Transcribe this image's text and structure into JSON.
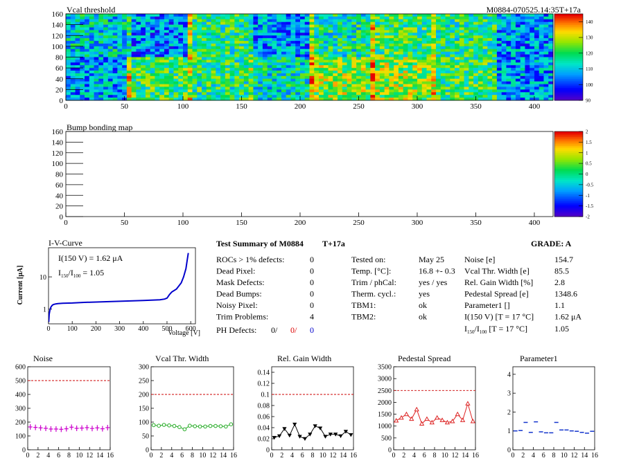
{
  "header": {
    "title_left": "Vcal threshold",
    "title_right": "M0884-070525.14:35T+17a"
  },
  "chart_data": [
    {
      "id": "vcal",
      "type": "heatmap",
      "title": "Vcal threshold",
      "xlim": [
        0,
        416
      ],
      "ylim": [
        0,
        160
      ],
      "xticks": [
        0,
        50,
        100,
        150,
        200,
        250,
        300,
        350,
        400
      ],
      "yticks": [
        0,
        20,
        40,
        60,
        80,
        100,
        120,
        140,
        160
      ],
      "palette_ticks": [
        90,
        100,
        110,
        120,
        130,
        140
      ],
      "zlim": [
        90,
        145
      ],
      "roc_grid": {
        "cols": 8,
        "rows": 2,
        "col_width": 52,
        "row_height": 80
      },
      "roc_levels_top": [
        112,
        105,
        118,
        106,
        116,
        120,
        118,
        106
      ],
      "roc_levels_bottom": [
        108,
        120,
        118,
        114,
        126,
        126,
        120,
        106
      ]
    },
    {
      "id": "bump",
      "type": "heatmap",
      "title": "Bump bonding map",
      "xlim": [
        0,
        416
      ],
      "ylim": [
        0,
        160
      ],
      "xticks": [
        0,
        50,
        100,
        150,
        200,
        250,
        300,
        350,
        400
      ],
      "yticks": [
        0,
        20,
        40,
        60,
        80,
        100,
        120,
        140,
        160
      ],
      "palette_ticks": [
        "2",
        "1.5",
        "1",
        "0.5",
        "0",
        "-0.5",
        "-1",
        "-1.5",
        "-2"
      ],
      "zlim": [
        -2,
        2
      ]
    },
    {
      "id": "iv",
      "type": "line",
      "title": "I-V-Curve",
      "xlabel": "Voltage [V]",
      "ylabel": "Current [μA]",
      "xlim": [
        0,
        620
      ],
      "ylim": [
        0.35,
        80
      ],
      "log_y": true,
      "xticks": [
        0,
        100,
        200,
        300,
        400,
        500,
        600
      ],
      "yticks": [
        "1",
        "10"
      ],
      "annotation_1": "I(150 V) = 1.62 μA",
      "annotation_2_a": "I",
      "annotation_2_sub1": "150",
      "annotation_2_b": "/I",
      "annotation_2_sub2": "100",
      "annotation_2_c": " =  1.05",
      "x": [
        1,
        3,
        6,
        10,
        15,
        20,
        30,
        40,
        60,
        100,
        150,
        200,
        300,
        400,
        470,
        490,
        500,
        510,
        520,
        540,
        560,
        570,
        580,
        585,
        590
      ],
      "y": [
        0.4,
        0.7,
        0.95,
        1.15,
        1.3,
        1.38,
        1.45,
        1.48,
        1.52,
        1.55,
        1.62,
        1.66,
        1.75,
        1.85,
        1.95,
        2.05,
        2.2,
        2.8,
        3.4,
        4.2,
        6.5,
        10,
        18,
        32,
        55
      ]
    },
    {
      "id": "noise",
      "type": "scatter",
      "title": "Noise",
      "xlim": [
        0,
        16
      ],
      "ylim": [
        0,
        600
      ],
      "xticks": [
        0,
        2,
        4,
        6,
        8,
        10,
        12,
        14,
        16
      ],
      "yticks": [
        0,
        100,
        200,
        300,
        400,
        500,
        600
      ],
      "limit": 500,
      "color": "#cc00cc",
      "marker": "cross",
      "connect": false,
      "x": [
        0.5,
        1.5,
        2.5,
        3.5,
        4.5,
        5.5,
        6.5,
        7.5,
        8.5,
        9.5,
        10.5,
        11.5,
        12.5,
        13.5,
        14.5,
        15.5
      ],
      "y": [
        165,
        162,
        158,
        155,
        150,
        150,
        148,
        152,
        163,
        155,
        157,
        160,
        154,
        158,
        152,
        160
      ]
    },
    {
      "id": "vcalwidth",
      "type": "scatter",
      "title": "Vcal Thr. Width",
      "xlim": [
        0,
        16
      ],
      "ylim": [
        0,
        300
      ],
      "xticks": [
        0,
        2,
        4,
        6,
        8,
        10,
        12,
        14,
        16
      ],
      "yticks": [
        0,
        50,
        100,
        150,
        200,
        250,
        300
      ],
      "limit": 200,
      "color": "#22aa22",
      "marker": "circle",
      "connect": true,
      "x": [
        0.5,
        1.5,
        2.5,
        3.5,
        4.5,
        5.5,
        6.5,
        7.5,
        8.5,
        9.5,
        10.5,
        11.5,
        12.5,
        13.5,
        14.5,
        15.5
      ],
      "y": [
        89,
        87,
        90,
        88,
        86,
        82,
        74,
        87,
        85,
        84,
        84,
        86,
        86,
        85,
        84,
        92
      ]
    },
    {
      "id": "gain",
      "type": "scatter",
      "title": "Rel. Gain Width",
      "xlim": [
        0,
        16
      ],
      "ylim": [
        0,
        0.15
      ],
      "xticks": [
        0,
        2,
        4,
        6,
        8,
        10,
        12,
        14,
        16
      ],
      "yticks": [
        "0",
        "0.02",
        "0.04",
        "0.06",
        "0.08",
        "0.1",
        "0.12",
        "0.14"
      ],
      "ytick_values": [
        0,
        0.02,
        0.04,
        0.06,
        0.08,
        0.1,
        0.12,
        0.14
      ],
      "limit": 0.1,
      "color": "#000000",
      "marker": "triangle-down",
      "connect": true,
      "x": [
        0.5,
        1.5,
        2.5,
        3.5,
        4.5,
        5.5,
        6.5,
        7.5,
        8.5,
        9.5,
        10.5,
        11.5,
        12.5,
        13.5,
        14.5,
        15.5
      ],
      "y": [
        0.022,
        0.025,
        0.038,
        0.026,
        0.046,
        0.024,
        0.02,
        0.028,
        0.043,
        0.039,
        0.024,
        0.028,
        0.028,
        0.025,
        0.033,
        0.027
      ]
    },
    {
      "id": "pedestal",
      "type": "scatter",
      "title": "Pedestal Spread",
      "xlim": [
        0,
        16
      ],
      "ylim": [
        0,
        3500
      ],
      "xticks": [
        0,
        2,
        4,
        6,
        8,
        10,
        12,
        14,
        16
      ],
      "yticks": [
        0,
        500,
        1000,
        1500,
        2000,
        2500,
        3000,
        3500
      ],
      "limit": 2500,
      "color": "#dd2222",
      "marker": "triangle-up",
      "connect": true,
      "x": [
        0.5,
        1.5,
        2.5,
        3.5,
        4.5,
        5.5,
        6.5,
        7.5,
        8.5,
        9.5,
        10.5,
        11.5,
        12.5,
        13.5,
        14.5,
        15.5
      ],
      "y": [
        1230,
        1350,
        1500,
        1300,
        1700,
        1100,
        1300,
        1150,
        1350,
        1250,
        1150,
        1200,
        1500,
        1250,
        1950,
        1200
      ]
    },
    {
      "id": "param1",
      "type": "scatter",
      "title": "Parameter1",
      "xlim": [
        0,
        16
      ],
      "ylim": [
        0,
        4.4
      ],
      "xticks": [
        0,
        2,
        4,
        6,
        8,
        10,
        12,
        14,
        16
      ],
      "yticks": [
        0,
        1,
        2,
        3,
        4
      ],
      "limit": null,
      "color": "#1133cc",
      "marker": "hbar",
      "connect": false,
      "x": [
        0.5,
        1.5,
        2.5,
        3.5,
        4.5,
        5.5,
        6.5,
        7.5,
        8.5,
        9.5,
        10.5,
        11.5,
        12.5,
        13.5,
        14.5,
        15.5
      ],
      "y": [
        1.0,
        1.02,
        1.45,
        0.92,
        1.48,
        0.95,
        0.9,
        0.9,
        1.45,
        1.05,
        1.05,
        1.0,
        0.98,
        0.92,
        0.88,
        0.98
      ]
    }
  ],
  "summary": {
    "title": "Test Summary of M0884",
    "suffix": "T+17a",
    "grade_label": "GRADE:  A",
    "defects": [
      {
        "label": "ROCs > 1% defects:",
        "value": "0"
      },
      {
        "label": "Dead Pixel:",
        "value": "0"
      },
      {
        "label": "Mask Defects:",
        "value": "0"
      },
      {
        "label": "Dead Bumps:",
        "value": "0"
      },
      {
        "label": "Noisy Pixel:",
        "value": "0"
      },
      {
        "label": "Trim Problems:",
        "value": "4"
      }
    ],
    "ph_defects_label": "PH Defects:",
    "ph_defects_values": [
      "0/",
      "0/",
      "0"
    ],
    "ph_defects_colors": [
      "#000000",
      "#dd0000",
      "#0000cc"
    ],
    "tests": [
      {
        "label": "Tested on:",
        "value": "May 25"
      },
      {
        "label": "Temp. [°C]:",
        "value": "16.8 +- 0.3"
      },
      {
        "label": "Trim / phCal:",
        "value": "yes / yes"
      },
      {
        "label": "Therm. cycl.:",
        "value": "yes"
      },
      {
        "label": "TBM1:",
        "value": "ok"
      },
      {
        "label": "TBM2:",
        "value": "ok"
      }
    ],
    "params": [
      {
        "label": "Noise [e]",
        "value": "154.7"
      },
      {
        "label": "Vcal Thr. Width [e]",
        "value": "85.5"
      },
      {
        "label": "Rel. Gain Width [%]",
        "value": "2.8"
      },
      {
        "label": "Pedestal Spread [e]",
        "value": "1348.6"
      },
      {
        "label": "Parameter1 []",
        "value": "1.1"
      },
      {
        "label": "I(150 V) [T = 17 °C]",
        "value": "1.62 μA"
      }
    ],
    "ratio_label_a": "I",
    "ratio_sub1": "150",
    "ratio_label_b": "/I",
    "ratio_sub2": "100",
    "ratio_label_c": "  [T = 17 °C]",
    "ratio_value": "1.05"
  }
}
